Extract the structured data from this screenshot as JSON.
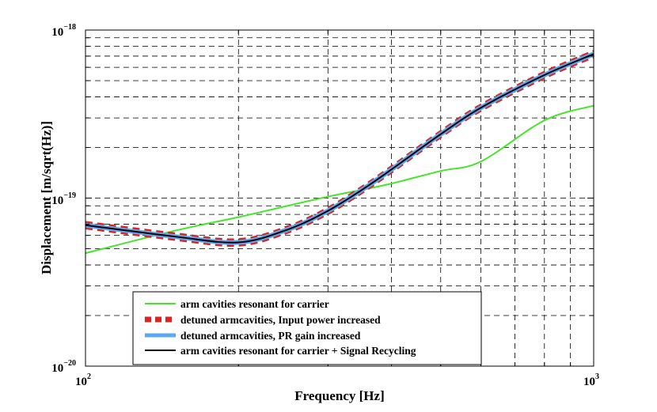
{
  "chart_data": {
    "type": "line",
    "title": "",
    "xlabel": "Frequency [Hz]",
    "ylabel": "Displacement [m/sqrt(Hz)]",
    "xscale": "log",
    "yscale": "log",
    "xlim": [
      100,
      1000
    ],
    "ylim": [
      1e-20,
      1e-18
    ],
    "grid": "dashed, major and minor",
    "legend_position": "bottom-center",
    "x_ticks": [
      {
        "base": "10",
        "exp": "2"
      },
      {
        "base": "10",
        "exp": "3"
      }
    ],
    "y_ticks": [
      {
        "base": "10",
        "exp": "−20"
      },
      {
        "base": "10",
        "exp": "−19"
      },
      {
        "base": "10",
        "exp": "−18"
      }
    ],
    "x": [
      100,
      150,
      200,
      250,
      300,
      350,
      400,
      500,
      600,
      800,
      1000
    ],
    "series": [
      {
        "name": "arm cavities resonant for carrier",
        "color": "#44e62a",
        "style": "solid-thin",
        "values": [
          4.7e-20,
          6.4e-20,
          7.7e-20,
          9e-20,
          1.02e-19,
          1.12e-19,
          1.22e-19,
          1.45e-19,
          1.65e-19,
          2.9e-19,
          3.55e-19
        ]
      },
      {
        "name": "detuned armcavities, Input power increased",
        "color": "#dd2222",
        "style": "dashed-thick",
        "band": true,
        "values": [
          6.9e-20,
          5.9e-20,
          5.45e-20,
          6.5e-20,
          8.4e-20,
          1.12e-19,
          1.48e-19,
          2.4e-19,
          3.45e-19,
          5.4e-19,
          7.2e-19
        ]
      },
      {
        "name": "detuned armcavities, PR gain increased",
        "color": "#5aa8ee",
        "style": "solid-thick",
        "values": [
          6.9e-20,
          5.9e-20,
          5.45e-20,
          6.5e-20,
          8.4e-20,
          1.12e-19,
          1.48e-19,
          2.4e-19,
          3.45e-19,
          5.4e-19,
          7.2e-19
        ]
      },
      {
        "name": "arm cavities resonant for carrier + Signal Recycling",
        "color": "#000000",
        "style": "solid",
        "values": [
          6.9e-20,
          5.9e-20,
          5.45e-20,
          6.5e-20,
          8.4e-20,
          1.12e-19,
          1.48e-19,
          2.4e-19,
          3.45e-19,
          5.4e-19,
          7.2e-19
        ]
      }
    ]
  }
}
